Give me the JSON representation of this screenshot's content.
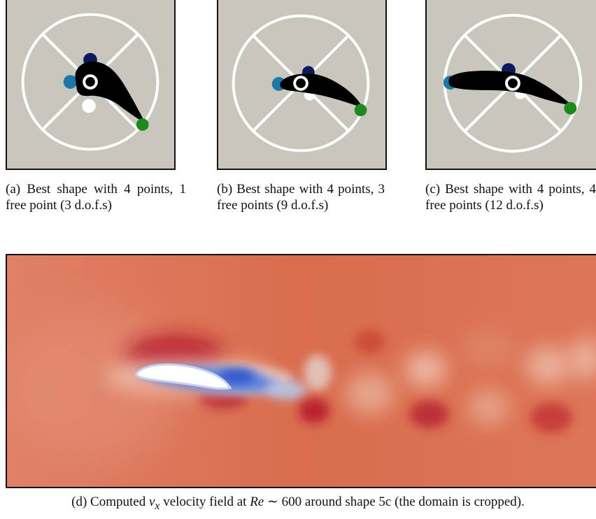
{
  "figure": {
    "panels": [
      {
        "id": "a",
        "caption": "(a) Best shape with 4 points, 1 free point (3 d.o.f.s)"
      },
      {
        "id": "b",
        "caption": "(b) Best shape with 4 points, 3 free points (9 d.o.f.s)"
      },
      {
        "id": "c",
        "caption": "(c) Best shape with 4 points, 4 free points (12 d.o.f.s)"
      }
    ],
    "field_caption": {
      "prefix": "(d) Computed ",
      "var_main": "v",
      "var_sub": "x",
      "middle": " velocity field at ",
      "re_symbol": "Re",
      "re_value": " ∼ 600",
      "suffix": " around shape 5c (the domain is cropped)."
    }
  },
  "colors": {
    "panel_background": "#c8c6bd",
    "shape": "#000000",
    "ring": "#ffffff",
    "point_dark_blue": "#0c1a5c",
    "point_light_blue": "#1c78a8",
    "point_green": "#1c8a1c",
    "point_white": "#ffffff",
    "field_base": "#d96d4e",
    "field_high": "#b2182b",
    "field_low": "#3b68d9"
  },
  "icons": [
    "control-ring-icon",
    "shape-silhouette-icon",
    "control-point-icon"
  ]
}
